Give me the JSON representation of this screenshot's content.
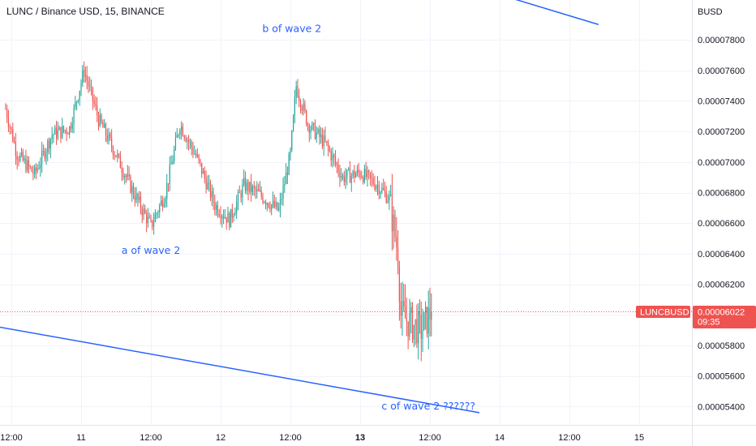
{
  "header": {
    "title": "LUNC / Binance USD, 15, BINANCE"
  },
  "price_scale": {
    "unit": "BUSD"
  },
  "price_tag": {
    "symbol": "LUNCBUSD",
    "price": "0.00006022",
    "countdown": "09:35"
  },
  "colors": {
    "up": "#26a69a",
    "down": "#ef5350",
    "trendline": "#2962ff",
    "annotation": "#2962ff",
    "tag": "#ef5350"
  },
  "annotations": [
    {
      "text": "b of wave 2",
      "x": "Sep 12 12:15",
      "y": 7.85e-05
    },
    {
      "text": "a of wave 2",
      "x": "Sep 11 12:00",
      "y": 6.4e-05
    },
    {
      "text": "c of wave 2 ??????",
      "x": "Sep 13 11:45",
      "y": 5.38e-05
    }
  ],
  "chart_data": {
    "type": "candlestick",
    "title": "LUNC / Binance USD, 15, BINANCE",
    "ylabel": "BUSD",
    "ylim": [
      5.28e-05,
      8.05e-05
    ],
    "y_ticks": [
      "0.00007800",
      "0.00007600",
      "0.00007400",
      "0.00007200",
      "0.00007000",
      "0.00006800",
      "0.00006600",
      "0.00006400",
      "0.00006200",
      "0.00005800",
      "0.00005600",
      "0.00005400"
    ],
    "x_ticks": [
      "12:00",
      "11",
      "12:00",
      "12",
      "12:00",
      "13",
      "12:00",
      "14",
      "12:00",
      "15"
    ],
    "x_ticks_bold": [
      "13"
    ],
    "candle_interval": "15m",
    "anchors": [
      {
        "time": "Sep 10 11:00",
        "price": 7.35e-05
      },
      {
        "time": "Sep 10 13:00",
        "price": 7.05e-05
      },
      {
        "time": "Sep 10 16:00",
        "price": 6.92e-05
      },
      {
        "time": "Sep 10 19:00",
        "price": 7.18e-05
      },
      {
        "time": "Sep 10 22:00",
        "price": 7.22e-05
      },
      {
        "time": "Sep 11 00:30",
        "price": 7.6e-05
      },
      {
        "time": "Sep 11 03:00",
        "price": 7.28e-05
      },
      {
        "time": "Sep 11 06:00",
        "price": 7.05e-05
      },
      {
        "time": "Sep 11 09:00",
        "price": 6.8e-05
      },
      {
        "time": "Sep 11 12:00",
        "price": 6.58e-05
      },
      {
        "time": "Sep 11 14:30",
        "price": 6.8e-05
      },
      {
        "time": "Sep 11 17:00",
        "price": 7.25e-05
      },
      {
        "time": "Sep 11 20:00",
        "price": 7.02e-05
      },
      {
        "time": "Sep 11 23:00",
        "price": 6.72e-05
      },
      {
        "time": "Sep 12 01:30",
        "price": 6.62e-05
      },
      {
        "time": "Sep 12 04:00",
        "price": 6.85e-05
      },
      {
        "time": "Sep 12 07:00",
        "price": 6.78e-05
      },
      {
        "time": "Sep 12 10:00",
        "price": 6.68e-05
      },
      {
        "time": "Sep 12 12:00",
        "price": 7.05e-05
      },
      {
        "time": "Sep 12 13:00",
        "price": 7.5e-05
      },
      {
        "time": "Sep 12 15:00",
        "price": 7.25e-05
      },
      {
        "time": "Sep 12 18:00",
        "price": 7.12e-05
      },
      {
        "time": "Sep 12 21:00",
        "price": 6.9e-05
      },
      {
        "time": "Sep 13 00:00",
        "price": 6.93e-05
      },
      {
        "time": "Sep 13 03:00",
        "price": 6.85e-05
      },
      {
        "time": "Sep 13 05:00",
        "price": 6.76e-05
      },
      {
        "time": "Sep 13 06:30",
        "price": 6.4e-05
      },
      {
        "time": "Sep 13 07:00",
        "price": 6e-05
      },
      {
        "time": "Sep 13 08:30",
        "price": 5.95e-05
      },
      {
        "time": "Sep 13 10:30",
        "price": 5.9e-05
      },
      {
        "time": "Sep 13 12:15",
        "price": 6.02e-05
      }
    ],
    "trendlines": [
      {
        "from": {
          "time": "Sep 10 10:00",
          "price": 5.92e-05
        },
        "to": {
          "time": "Sep 13 20:30",
          "price": 5.36e-05
        }
      },
      {
        "from": {
          "time": "Sep 14 00:30",
          "price": 8.09e-05
        },
        "to": {
          "time": "Sep 14 17:00",
          "price": 7.9e-05
        }
      }
    ],
    "last_price": 6.022e-05,
    "grid": true
  }
}
